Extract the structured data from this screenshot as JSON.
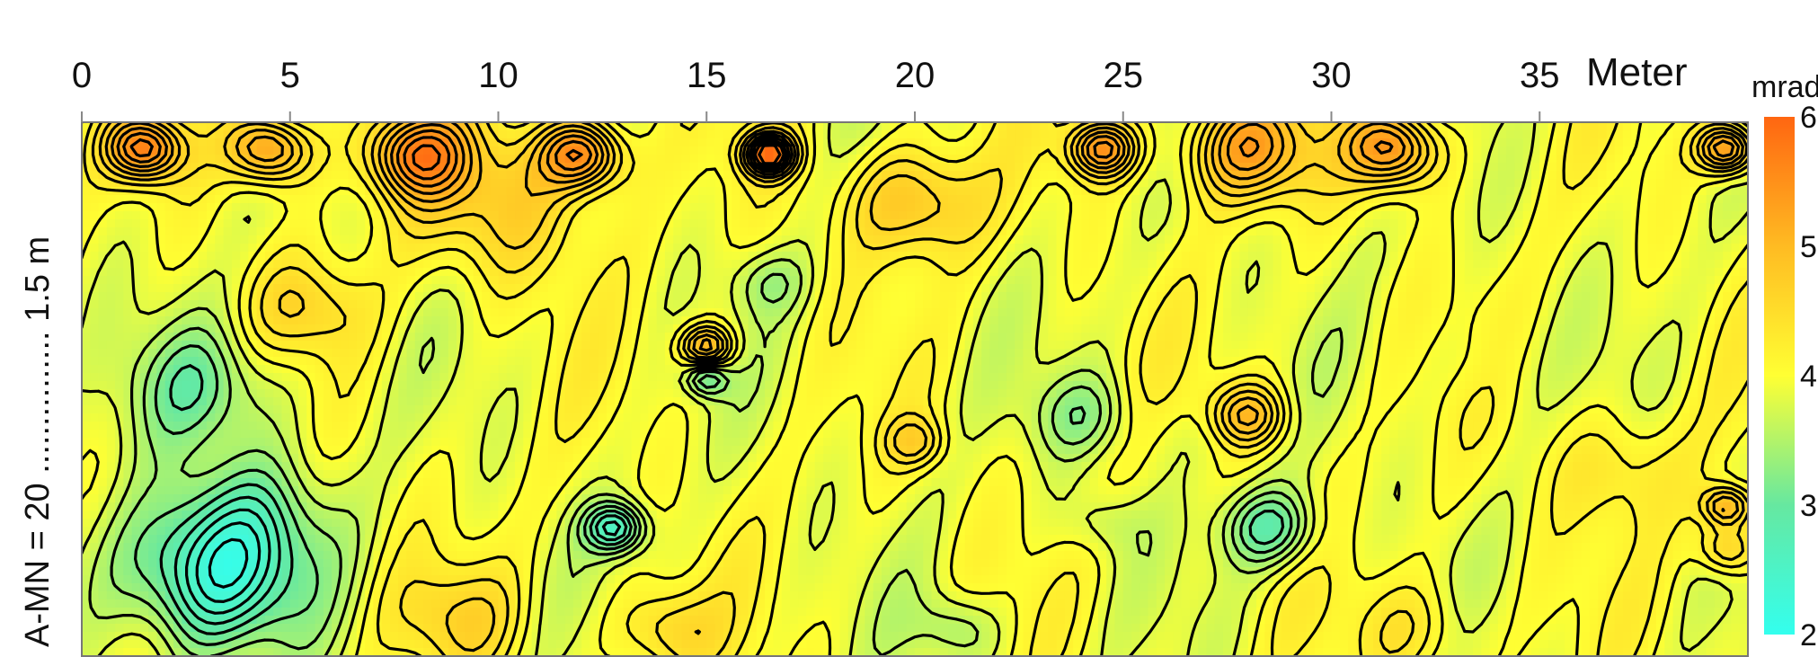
{
  "chart_data": {
    "type": "heatmap",
    "title": "",
    "x_axis": {
      "ticks": [
        0,
        5,
        10,
        15,
        20,
        25,
        30,
        35
      ],
      "unit": "Meter",
      "range": [
        0,
        40
      ]
    },
    "y_axis": {
      "label": "A-MN = 20 ............... 1.5 m"
    },
    "colorbar": {
      "unit": "mrad",
      "ticks": [
        2,
        3,
        4,
        5,
        6
      ],
      "range": [
        2,
        6
      ],
      "colors": {
        "2": "#33ffee",
        "3": "#66e8a0",
        "4": "#ffff33",
        "5": "#ffbb22",
        "6": "#ff6611"
      }
    },
    "contour_color": "#000000",
    "grid": false,
    "features": [
      {
        "x": 1.5,
        "d": 0.05,
        "v": 5.6,
        "r": 0.9
      },
      {
        "x": 4.5,
        "d": 0.05,
        "v": 5.5,
        "r": 1.0
      },
      {
        "x": 8.0,
        "d": 0.06,
        "v": 5.4,
        "r": 1.2
      },
      {
        "x": 12.0,
        "d": 0.06,
        "v": 5.6,
        "r": 1.0
      },
      {
        "x": 16.5,
        "d": 0.06,
        "v": 5.9,
        "r": 0.6
      },
      {
        "x": 20.0,
        "d": 0.15,
        "v": 4.9,
        "r": 1.6
      },
      {
        "x": 24.5,
        "d": 0.05,
        "v": 5.5,
        "r": 0.8
      },
      {
        "x": 28.0,
        "d": 0.05,
        "v": 5.3,
        "r": 1.5
      },
      {
        "x": 31.5,
        "d": 0.05,
        "v": 5.5,
        "r": 1.1
      },
      {
        "x": 39.5,
        "d": 0.05,
        "v": 5.6,
        "r": 0.7
      },
      {
        "x": 10.0,
        "d": 0.15,
        "v": 4.7,
        "r": 2.2
      },
      {
        "x": 5.5,
        "d": 0.35,
        "v": 4.5,
        "r": 1.4
      },
      {
        "x": 3.0,
        "d": 0.5,
        "v": 3.2,
        "r": 1.8
      },
      {
        "x": 4.0,
        "d": 0.73,
        "v": 3.4,
        "r": 2.0
      },
      {
        "x": 3.0,
        "d": 0.85,
        "v": 2.4,
        "r": 2.2
      },
      {
        "x": 9.0,
        "d": 0.93,
        "v": 4.5,
        "r": 1.5
      },
      {
        "x": 12.8,
        "d": 0.76,
        "v": 2.6,
        "r": 0.7
      },
      {
        "x": 15.0,
        "d": 0.42,
        "v": 5.2,
        "r": 0.6
      },
      {
        "x": 15.0,
        "d": 0.48,
        "v": 3.0,
        "r": 0.5
      },
      {
        "x": 16.5,
        "d": 0.3,
        "v": 3.5,
        "r": 0.9
      },
      {
        "x": 20.0,
        "d": 0.6,
        "v": 4.6,
        "r": 0.7
      },
      {
        "x": 24.0,
        "d": 0.55,
        "v": 3.4,
        "r": 1.2
      },
      {
        "x": 24.5,
        "d": 0.75,
        "v": 3.6,
        "r": 0.9
      },
      {
        "x": 27.0,
        "d": 0.6,
        "v": 3.8,
        "r": 1.0
      },
      {
        "x": 28.0,
        "d": 0.55,
        "v": 5.0,
        "r": 0.9
      },
      {
        "x": 28.5,
        "d": 0.76,
        "v": 2.9,
        "r": 1.1
      },
      {
        "x": 31.0,
        "d": 0.25,
        "v": 3.9,
        "r": 0.8
      },
      {
        "x": 33.5,
        "d": 0.45,
        "v": 3.8,
        "r": 1.2
      },
      {
        "x": 37.0,
        "d": 0.65,
        "v": 4.4,
        "r": 1.6
      },
      {
        "x": 39.5,
        "d": 0.72,
        "v": 5.2,
        "r": 0.6
      },
      {
        "x": 39.5,
        "d": 0.8,
        "v": 4.8,
        "r": 0.7
      },
      {
        "x": 21.0,
        "d": 0.95,
        "v": 3.4,
        "r": 1.0
      },
      {
        "x": 14.0,
        "d": 0.95,
        "v": 4.6,
        "r": 1.2
      },
      {
        "x": 32.0,
        "d": 0.95,
        "v": 4.4,
        "r": 1.4
      }
    ]
  }
}
